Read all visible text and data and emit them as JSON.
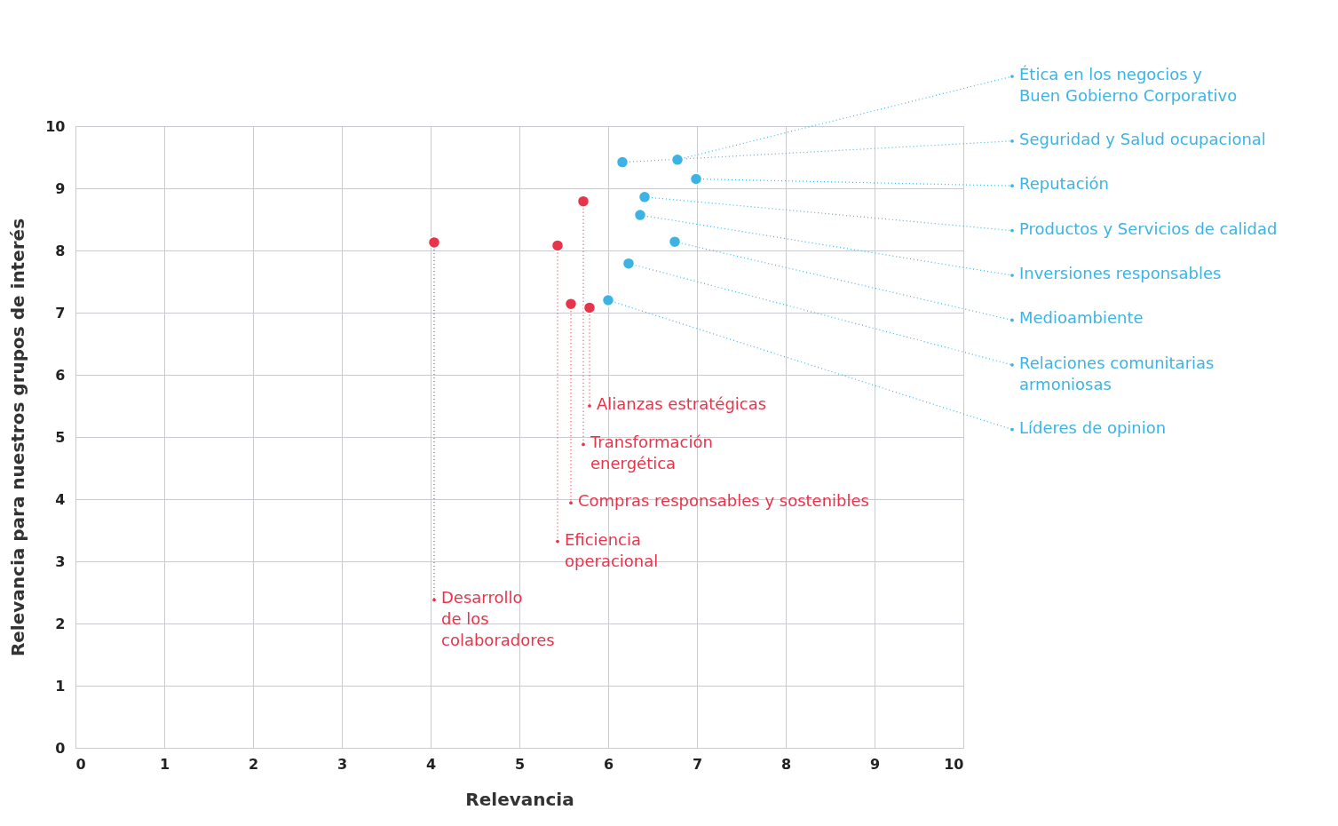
{
  "chart_data": {
    "type": "scatter",
    "xlabel": "Relevancia",
    "ylabel": "Relevancia para nuestros grupos de interés",
    "xlim": [
      0,
      10
    ],
    "ylim": [
      0,
      10
    ],
    "xticks": [
      0,
      1,
      2,
      3,
      4,
      5,
      6,
      7,
      8,
      9,
      10
    ],
    "yticks": [
      0,
      1,
      2,
      3,
      4,
      5,
      6,
      7,
      8,
      9,
      10
    ],
    "grid": true,
    "legend": false,
    "marker": "circle",
    "series": [
      {
        "color": "#3bb4e5",
        "x": [
          6.16,
          6.78,
          6.99,
          6.41,
          6.36,
          6.75,
          6.23,
          6.0
        ],
        "values": [
          9.42,
          9.46,
          9.15,
          8.86,
          8.57,
          8.14,
          7.79,
          7.2
        ]
      },
      {
        "color": "#e8344a",
        "x": [
          5.72,
          4.04,
          5.43,
          5.58,
          5.79
        ],
        "values": [
          8.79,
          8.13,
          8.08,
          7.14,
          7.08
        ]
      }
    ],
    "annotations": [
      {
        "text": "Seguridad y Salud ocupacional",
        "x": 6.16,
        "y": 9.42
      },
      {
        "text": "Ética en los negocios y\nBuen Gobierno Corporativo",
        "x": 6.78,
        "y": 9.46
      },
      {
        "text": "Reputación",
        "x": 6.99,
        "y": 9.15
      },
      {
        "text": "Productos y Servicios de calidad",
        "x": 6.41,
        "y": 8.86
      },
      {
        "text": "Inversiones responsables",
        "x": 6.36,
        "y": 8.57
      },
      {
        "text": "Medioambiente",
        "x": 6.75,
        "y": 8.14
      },
      {
        "text": "Relaciones comunitarias\narmoniosas",
        "x": 6.23,
        "y": 7.79
      },
      {
        "text": "Líderes de opinion",
        "x": 6.0,
        "y": 7.2
      },
      {
        "text": "Transformación\nenergética",
        "x": 5.72,
        "y": 8.79
      },
      {
        "text": "Desarrollo\nde los\ncolaboradores",
        "x": 4.04,
        "y": 8.13
      },
      {
        "text": "Eficiencia\noperacional",
        "x": 5.43,
        "y": 8.08
      },
      {
        "text": "Compras responsables y sostenibles",
        "x": 5.58,
        "y": 7.14
      },
      {
        "text": "Alianzas estratégicas",
        "x": 5.79,
        "y": 7.08
      }
    ]
  }
}
